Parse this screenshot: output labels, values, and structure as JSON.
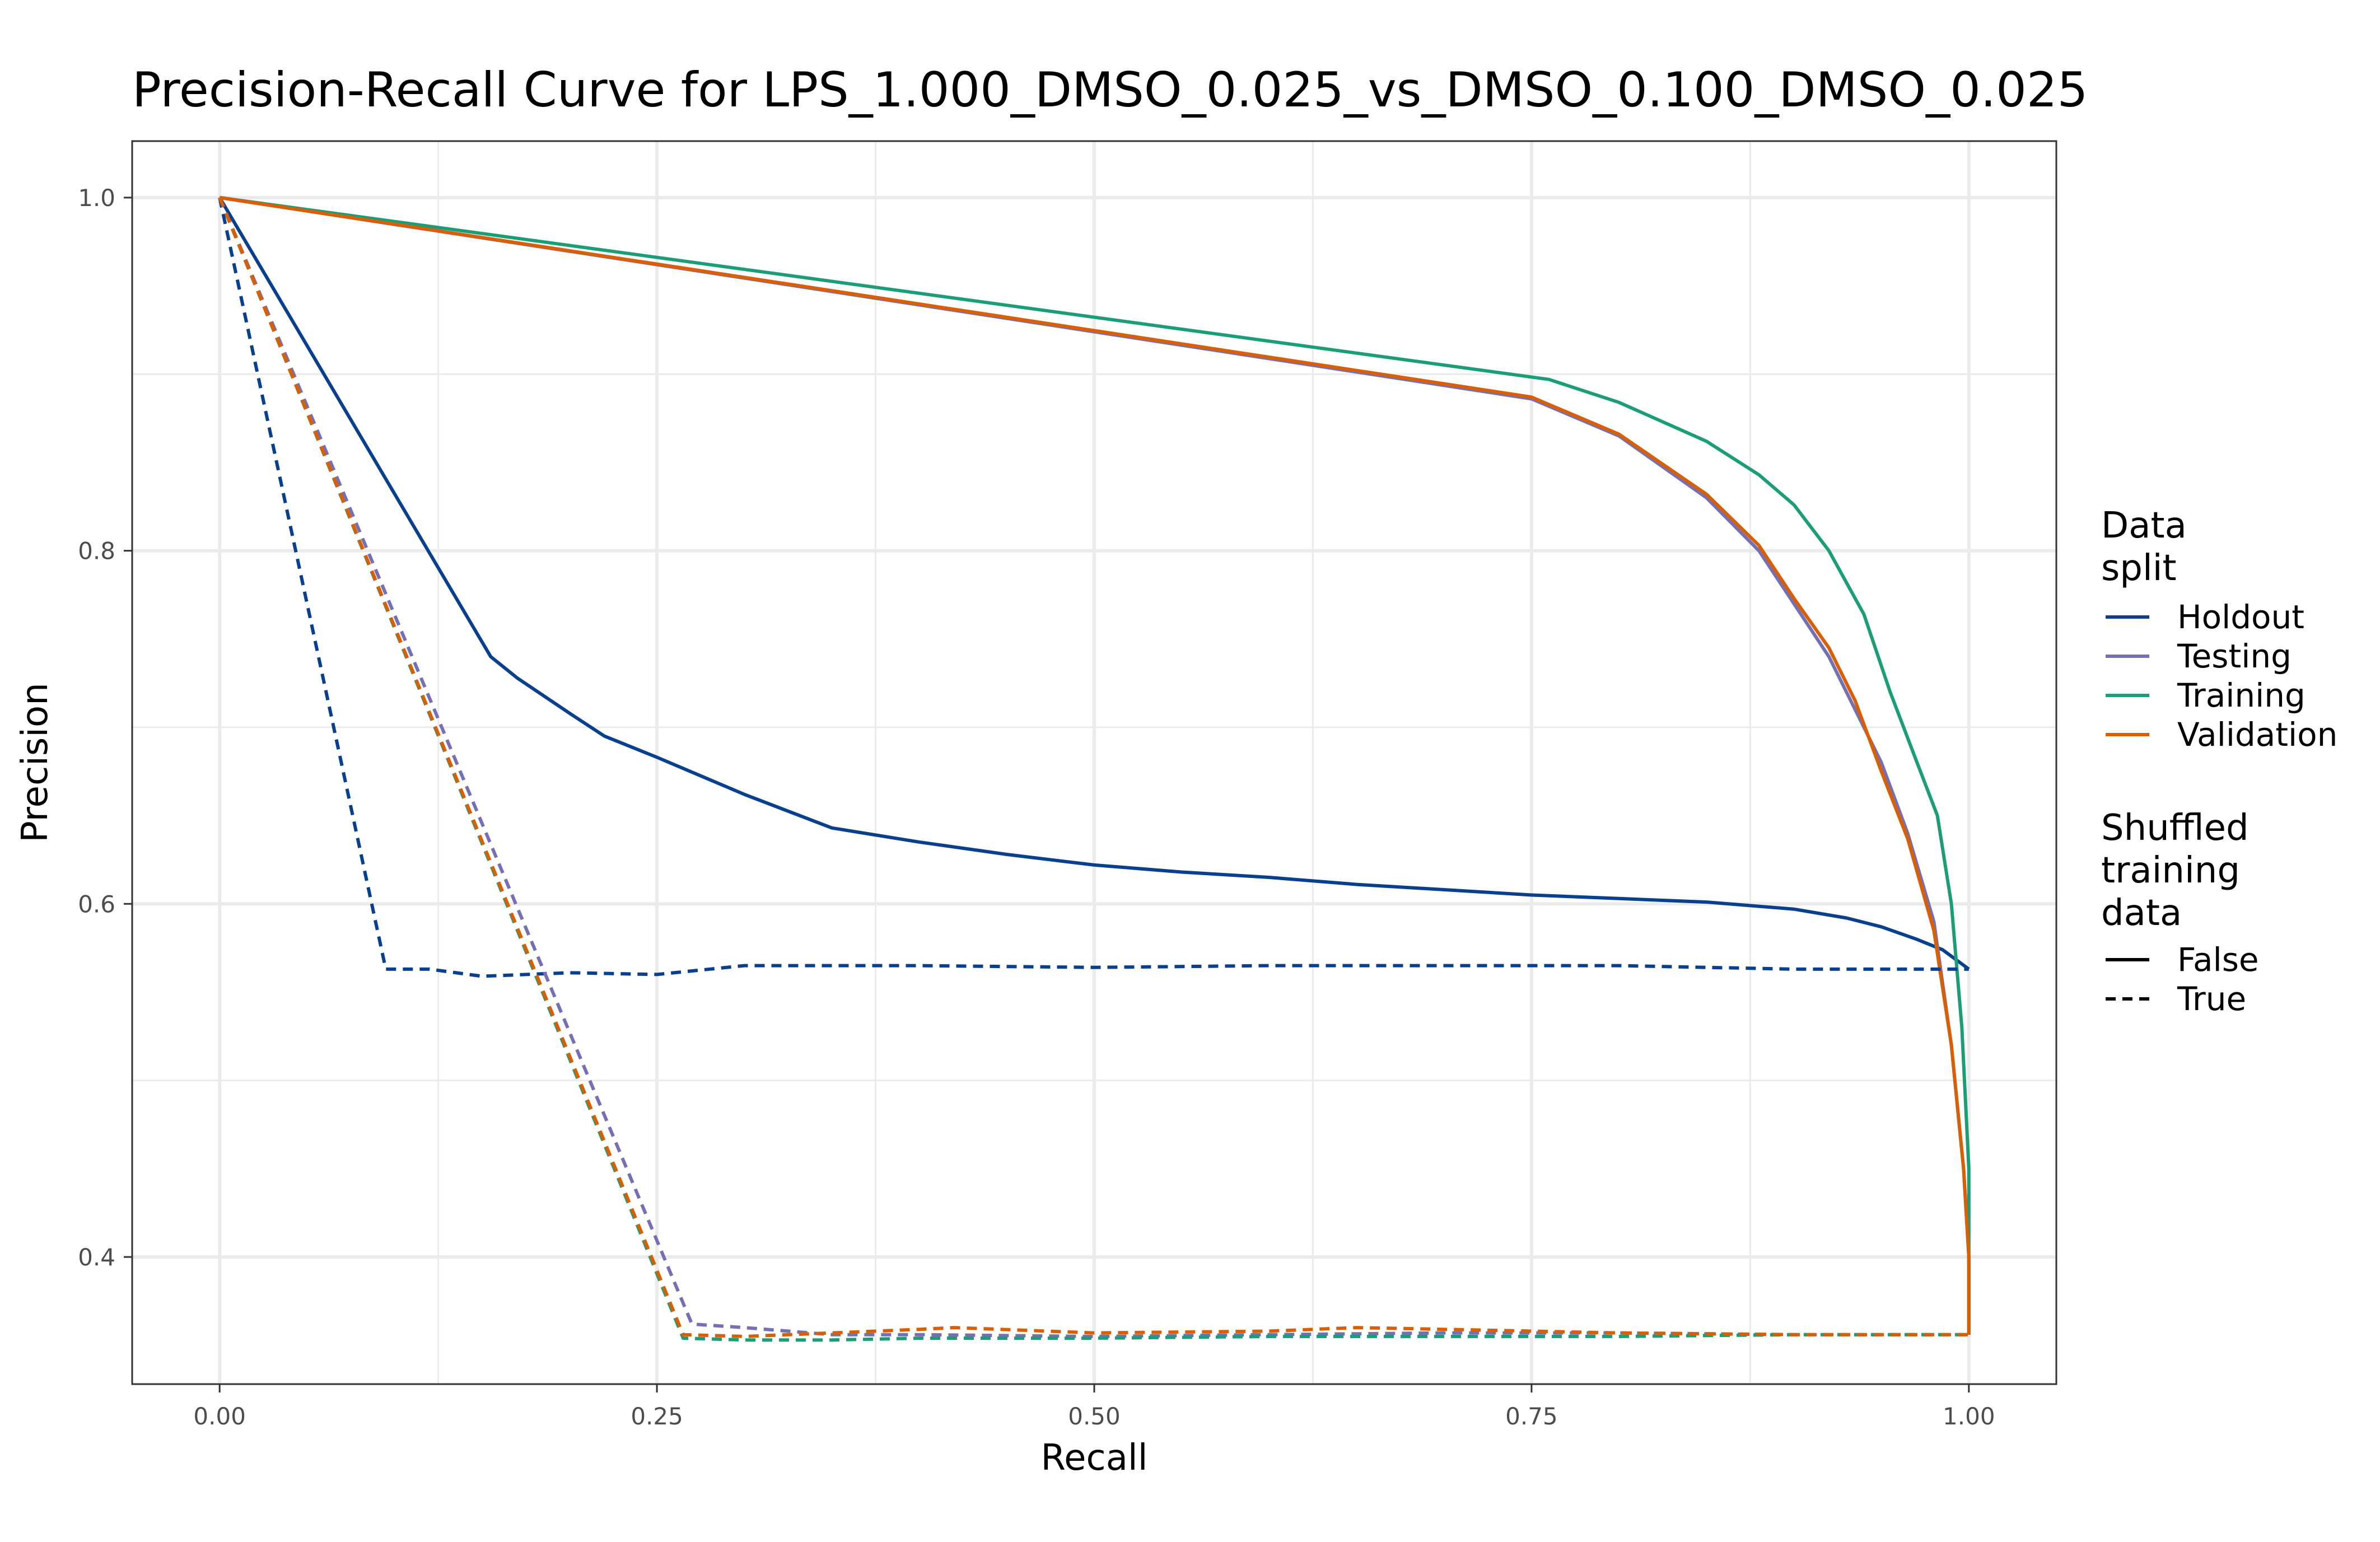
{
  "chart_data": {
    "type": "line",
    "title": "Precision-Recall Curve for LPS_1.000_DMSO_0.025_vs_DMSO_0.100_DMSO_0.025",
    "xlabel": "Recall",
    "ylabel": "Precision",
    "xlim": [
      -0.05,
      1.05
    ],
    "ylim": [
      0.328,
      1.032
    ],
    "x_ticks": [
      0.0,
      0.25,
      0.5,
      0.75,
      1.0
    ],
    "x_tick_labels": [
      "0.00",
      "0.25",
      "0.50",
      "0.75",
      "1.00"
    ],
    "y_ticks": [
      0.4,
      0.6,
      0.8,
      1.0
    ],
    "y_tick_labels": [
      "0.4",
      "0.6",
      "0.8",
      "1.0"
    ],
    "grid": true,
    "legend_position": "right",
    "legend": {
      "color_title": [
        "Data",
        "split"
      ],
      "color_entries": [
        {
          "label": "Holdout",
          "color": "#08408d"
        },
        {
          "label": "Testing",
          "color": "#7570b3"
        },
        {
          "label": "Training",
          "color": "#1b9e77"
        },
        {
          "label": "Validation",
          "color": "#d95f02"
        }
      ],
      "linetype_title": [
        "Shuffled",
        "training",
        "data"
      ],
      "linetype_entries": [
        {
          "label": "False",
          "dashed": false
        },
        {
          "label": "True",
          "dashed": true
        }
      ]
    },
    "series": [
      {
        "split": "Holdout",
        "shuffled": "False",
        "color": "#08408d",
        "dashed": false,
        "x": [
          0.0,
          0.155,
          0.17,
          0.2,
          0.22,
          0.25,
          0.3,
          0.35,
          0.4,
          0.45,
          0.5,
          0.55,
          0.6,
          0.65,
          0.7,
          0.75,
          0.8,
          0.85,
          0.9,
          0.93,
          0.95,
          0.97,
          0.985,
          1.0
        ],
        "y": [
          1.0,
          0.74,
          0.728,
          0.708,
          0.695,
          0.683,
          0.662,
          0.643,
          0.635,
          0.628,
          0.622,
          0.618,
          0.615,
          0.611,
          0.608,
          0.605,
          0.603,
          0.601,
          0.597,
          0.592,
          0.587,
          0.58,
          0.574,
          0.563
        ]
      },
      {
        "split": "Testing",
        "shuffled": "False",
        "color": "#7570b3",
        "dashed": false,
        "x": [
          0.0,
          0.75,
          0.8,
          0.85,
          0.88,
          0.9,
          0.92,
          0.935,
          0.95,
          0.965,
          0.98,
          0.99,
          0.997,
          1.0,
          1.0
        ],
        "y": [
          1.0,
          0.886,
          0.865,
          0.83,
          0.8,
          0.77,
          0.74,
          0.71,
          0.68,
          0.64,
          0.59,
          0.52,
          0.45,
          0.4,
          0.356
        ]
      },
      {
        "split": "Training",
        "shuffled": "False",
        "color": "#1b9e77",
        "dashed": false,
        "x": [
          0.0,
          0.76,
          0.8,
          0.85,
          0.88,
          0.9,
          0.92,
          0.94,
          0.955,
          0.97,
          0.982,
          0.99,
          0.996,
          1.0,
          1.0
        ],
        "y": [
          1.0,
          0.897,
          0.884,
          0.862,
          0.843,
          0.826,
          0.8,
          0.764,
          0.72,
          0.681,
          0.65,
          0.6,
          0.53,
          0.45,
          0.356
        ]
      },
      {
        "split": "Validation",
        "shuffled": "False",
        "color": "#d95f02",
        "dashed": false,
        "x": [
          0.0,
          0.75,
          0.8,
          0.85,
          0.88,
          0.9,
          0.92,
          0.935,
          0.95,
          0.965,
          0.98,
          0.99,
          0.997,
          1.0,
          1.0
        ],
        "y": [
          1.0,
          0.887,
          0.866,
          0.832,
          0.803,
          0.773,
          0.745,
          0.715,
          0.675,
          0.637,
          0.585,
          0.52,
          0.45,
          0.4,
          0.356
        ]
      },
      {
        "split": "Holdout",
        "shuffled": "True",
        "color": "#08408d",
        "dashed": true,
        "x": [
          0.0,
          0.095,
          0.12,
          0.15,
          0.2,
          0.25,
          0.3,
          0.4,
          0.5,
          0.6,
          0.7,
          0.8,
          0.9,
          1.0
        ],
        "y": [
          1.0,
          0.563,
          0.563,
          0.559,
          0.561,
          0.56,
          0.565,
          0.565,
          0.564,
          0.565,
          0.565,
          0.565,
          0.563,
          0.563
        ]
      },
      {
        "split": "Testing",
        "shuffled": "True",
        "color": "#7570b3",
        "dashed": true,
        "x": [
          0.0,
          0.27,
          0.3,
          0.35,
          0.4,
          0.5,
          0.6,
          0.7,
          0.8,
          0.9,
          1.0
        ],
        "y": [
          1.0,
          0.362,
          0.36,
          0.356,
          0.356,
          0.355,
          0.356,
          0.357,
          0.357,
          0.356,
          0.356
        ]
      },
      {
        "split": "Training",
        "shuffled": "True",
        "color": "#1b9e77",
        "dashed": true,
        "x": [
          0.0,
          0.265,
          0.3,
          0.35,
          0.4,
          0.5,
          0.6,
          0.7,
          0.8,
          0.9,
          1.0
        ],
        "y": [
          1.0,
          0.354,
          0.353,
          0.353,
          0.354,
          0.354,
          0.355,
          0.355,
          0.355,
          0.356,
          0.356
        ]
      },
      {
        "split": "Validation",
        "shuffled": "True",
        "color": "#d95f02",
        "dashed": true,
        "x": [
          0.0,
          0.265,
          0.3,
          0.35,
          0.4,
          0.42,
          0.5,
          0.6,
          0.65,
          0.7,
          0.8,
          0.9,
          1.0
        ],
        "y": [
          1.0,
          0.356,
          0.355,
          0.357,
          0.359,
          0.36,
          0.357,
          0.358,
          0.36,
          0.359,
          0.357,
          0.356,
          0.356
        ]
      }
    ]
  }
}
